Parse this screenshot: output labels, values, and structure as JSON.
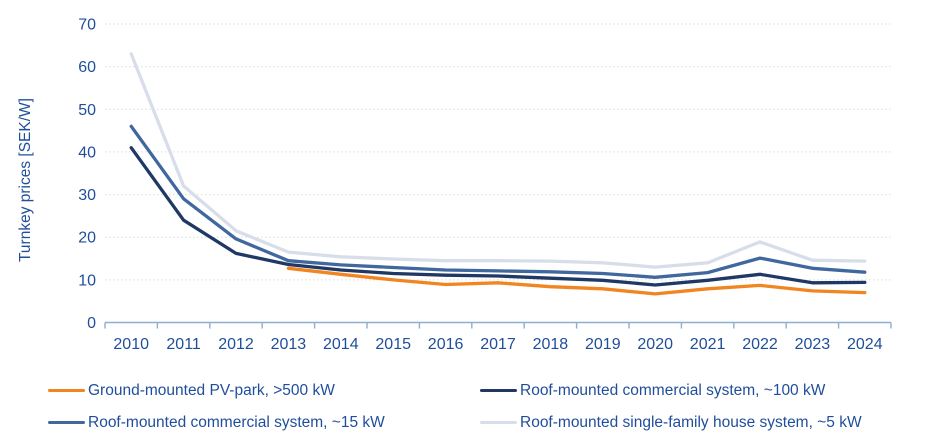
{
  "chart_data": {
    "type": "line",
    "title": "",
    "xlabel": "",
    "ylabel": "Turnkey prices [SEK/W]",
    "ylim": [
      0,
      70
    ],
    "ytick_step": 10,
    "grid": "horizontal-dotted",
    "legend_position": "bottom-two-columns",
    "categories": [
      "2010",
      "2011",
      "2012",
      "2013",
      "2014",
      "2015",
      "2016",
      "2017",
      "2018",
      "2019",
      "2020",
      "2021",
      "2022",
      "2023",
      "2024"
    ],
    "series": [
      {
        "name": "Ground-mounted PV-park, >500 kW",
        "color": "#F08521",
        "values": [
          null,
          null,
          null,
          12.7,
          11.3,
          10.0,
          8.9,
          9.3,
          8.4,
          7.9,
          6.7,
          7.9,
          8.7,
          7.4,
          7.0
        ]
      },
      {
        "name": "Roof-mounted commercial system, ~100 kW",
        "color": "#1F3864",
        "values": [
          41.0,
          24.0,
          16.2,
          13.6,
          12.3,
          11.5,
          11.1,
          10.9,
          10.4,
          9.9,
          8.8,
          9.9,
          11.3,
          9.3,
          9.4
        ]
      },
      {
        "name": "Roof-mounted commercial system, ~15 kW",
        "color": "#40689F",
        "values": [
          46.0,
          29.0,
          19.6,
          14.5,
          13.5,
          12.9,
          12.3,
          12.1,
          11.9,
          11.5,
          10.6,
          11.7,
          15.1,
          12.7,
          11.8
        ]
      },
      {
        "name": "Roof-mounted single-family house system, ~5 kW",
        "color": "#D8DEE9",
        "values": [
          63.0,
          32.0,
          21.5,
          16.5,
          15.4,
          14.9,
          14.5,
          14.5,
          14.4,
          14.0,
          13.0,
          14.0,
          18.9,
          14.6,
          14.4
        ]
      }
    ]
  },
  "colors": {
    "text": "#1F4E9C",
    "axis_line": "#8EADD3",
    "gridline": "#DBDBDB"
  }
}
